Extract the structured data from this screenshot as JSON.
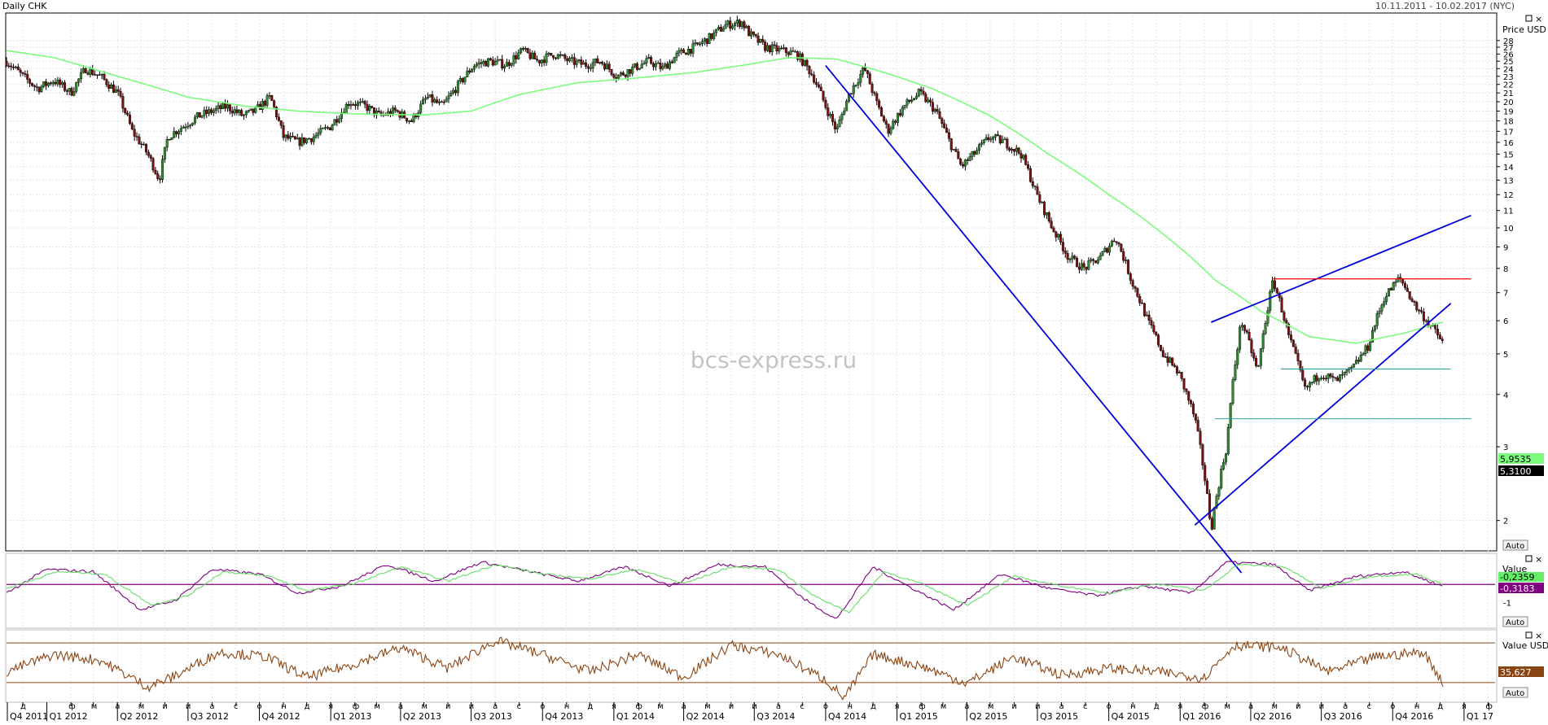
{
  "header": {
    "title": "Daily CHK",
    "date_range": "10.11.2011 - 10.02.2017 (NYC)"
  },
  "watermark": "bcs-express.ru",
  "colors": {
    "candle_up": "#2e8b2e",
    "candle_down": "#7a1010",
    "moving_average": "#7cfc7c",
    "trend_lines": "#0000dd",
    "resistance_line": "#ff0000",
    "support_line_upper": "#2aa0a0",
    "support_line_lower": "#2aa0a0",
    "oscillator_line": "#800080",
    "signal_line": "#66dd66",
    "rsi_line": "#8b4513",
    "grid": "#e4e4e4"
  },
  "chart_data": [
    {
      "type": "line",
      "panel": "price",
      "title": "Daily CHK",
      "ylabel": "Price USD",
      "y_scale": "log",
      "ylim": [
        1.7,
        32
      ],
      "y_ticks": [
        2,
        3,
        4,
        5,
        6,
        7,
        8,
        9,
        10,
        11,
        12,
        13,
        14,
        15,
        16,
        17,
        18,
        19,
        20,
        21,
        22,
        23,
        24,
        25,
        26,
        27,
        28
      ],
      "grid": true,
      "series": [
        {
          "role": "price (candlesticks)",
          "x": [
            "2011-11-10",
            "2011-12-01",
            "2011-12-20",
            "2012-01-10",
            "2012-02-01",
            "2012-02-20",
            "2012-03-10",
            "2012-04-01",
            "2012-04-20",
            "2012-05-10",
            "2012-05-25",
            "2012-06-05",
            "2012-06-25",
            "2012-07-15",
            "2012-08-01",
            "2012-08-20",
            "2012-09-10",
            "2012-09-25",
            "2012-10-15",
            "2012-11-01",
            "2012-11-20",
            "2012-12-10",
            "2013-01-01",
            "2013-01-25",
            "2013-02-15",
            "2013-03-05",
            "2013-03-25",
            "2013-04-15",
            "2013-05-05",
            "2013-05-25",
            "2013-06-15",
            "2013-07-05",
            "2013-07-25",
            "2013-08-15",
            "2013-09-05",
            "2013-09-25",
            "2013-10-15",
            "2013-11-05",
            "2013-11-25",
            "2013-12-15",
            "2014-01-05",
            "2014-01-25",
            "2014-02-15",
            "2014-03-05",
            "2014-03-25",
            "2014-04-15",
            "2014-05-05",
            "2014-05-25",
            "2014-06-15",
            "2014-06-25",
            "2014-07-15",
            "2014-08-05",
            "2014-08-25",
            "2014-09-15",
            "2014-10-01",
            "2014-10-15",
            "2014-11-01",
            "2014-11-20",
            "2014-12-05",
            "2014-12-20",
            "2015-01-10",
            "2015-01-30",
            "2015-02-20",
            "2015-03-10",
            "2015-03-25",
            "2015-04-10",
            "2015-05-01",
            "2015-05-20",
            "2015-06-10",
            "2015-06-30",
            "2015-07-20",
            "2015-08-10",
            "2015-08-30",
            "2015-09-20",
            "2015-10-10",
            "2015-10-30",
            "2015-11-20",
            "2015-12-10",
            "2015-12-30",
            "2016-01-20",
            "2016-02-10",
            "2016-03-01",
            "2016-03-20",
            "2016-04-10",
            "2016-04-30",
            "2016-05-20",
            "2016-06-10",
            "2016-06-30",
            "2016-07-20",
            "2016-08-10",
            "2016-08-30",
            "2016-09-20",
            "2016-10-10",
            "2016-10-30",
            "2016-11-20",
            "2016-12-05"
          ],
          "values": [
            25,
            23,
            21.5,
            22.5,
            21,
            24,
            23,
            21,
            17,
            15,
            13,
            16.5,
            17.5,
            18.5,
            19,
            19.5,
            18.5,
            19,
            20.5,
            16.5,
            16,
            16.5,
            17.5,
            20,
            19.5,
            18.5,
            19,
            18,
            20.5,
            19.5,
            22,
            24.5,
            25,
            24.5,
            26.5,
            25,
            26,
            25,
            24.5,
            25,
            23,
            24,
            25,
            24,
            26,
            27,
            28.5,
            30.5,
            31,
            29,
            27,
            26.5,
            26,
            23,
            19.5,
            17,
            21,
            24,
            20,
            17,
            19.5,
            21,
            19,
            16,
            14,
            15,
            16.5,
            16,
            15,
            12,
            10,
            8.5,
            8,
            8.5,
            9.5,
            7.5,
            6,
            5,
            4.5,
            3.5,
            1.9,
            3,
            6,
            4.5,
            7.5,
            5.5,
            4.1,
            4.5,
            4.3,
            4.6,
            5.2,
            6.8,
            7.6,
            6.5,
            5.8,
            5.31
          ]
        },
        {
          "role": "moving average",
          "label": "5,9535",
          "x": [
            "2011-11-10",
            "2012-01-10",
            "2012-04-01",
            "2012-07-01",
            "2012-09-15",
            "2012-11-20",
            "2013-02-01",
            "2013-05-01",
            "2013-07-01",
            "2013-09-01",
            "2013-11-15",
            "2014-02-01",
            "2014-04-15",
            "2014-06-20",
            "2014-08-15",
            "2014-10-15",
            "2014-12-15",
            "2015-02-15",
            "2015-05-01",
            "2015-07-15",
            "2015-10-01",
            "2015-12-15",
            "2016-02-15",
            "2016-04-15",
            "2016-06-15",
            "2016-08-15",
            "2016-10-15",
            "2016-12-05"
          ],
          "values": [
            26.5,
            25.5,
            23,
            20.5,
            19.5,
            19,
            18.7,
            18.6,
            19,
            20.8,
            22.2,
            22.8,
            23.5,
            24.5,
            25.5,
            25.3,
            23.5,
            21.5,
            18.5,
            15,
            12,
            9.5,
            7.5,
            6.3,
            5.5,
            5.3,
            5.6,
            5.9535
          ]
        },
        {
          "role": "downtrend line",
          "x": [
            "2014-10-01",
            "2016-03-20"
          ],
          "values": [
            24.4,
            1.5
          ]
        },
        {
          "role": "channel lower line",
          "x": [
            "2016-01-20",
            "2016-12-15"
          ],
          "values": [
            1.95,
            6.6
          ]
        },
        {
          "role": "channel upper line",
          "x": [
            "2016-02-10",
            "2017-01-10"
          ],
          "values": [
            5.95,
            10.7
          ]
        },
        {
          "role": "resistance level",
          "x": [
            "2016-04-30",
            "2017-01-10"
          ],
          "values": [
            7.55,
            7.55
          ]
        },
        {
          "role": "support level",
          "x": [
            "2016-05-10",
            "2016-12-15"
          ],
          "values": [
            4.6,
            4.6
          ]
        },
        {
          "role": "support level",
          "x": [
            "2016-02-15",
            "2017-01-10"
          ],
          "values": [
            3.5,
            3.5
          ]
        }
      ],
      "last_price_label": "5,3100",
      "scale_button": "Auto"
    },
    {
      "type": "line",
      "panel": "oscillator",
      "ylabel": "Value",
      "ylim": [
        -2,
        1
      ],
      "y_ticks": [
        -1
      ],
      "level": -0.2359,
      "level_label": "-0,2359",
      "last_value_label": "-0,3183",
      "series": [
        {
          "role": "oscillator",
          "x": [
            "2011-11-10",
            "2012-01-01",
            "2012-03-01",
            "2012-05-01",
            "2012-06-15",
            "2012-08-01",
            "2012-10-01",
            "2012-11-20",
            "2013-01-15",
            "2013-03-15",
            "2013-05-15",
            "2013-07-15",
            "2013-09-15",
            "2013-11-15",
            "2014-01-15",
            "2014-03-15",
            "2014-05-15",
            "2014-07-15",
            "2014-09-01",
            "2014-10-15",
            "2014-12-01",
            "2015-01-15",
            "2015-03-15",
            "2015-05-15",
            "2015-07-15",
            "2015-09-15",
            "2015-11-15",
            "2016-01-15",
            "2016-03-01",
            "2016-05-01",
            "2016-06-15",
            "2016-08-15",
            "2016-10-15",
            "2016-12-05"
          ],
          "values": [
            -0.6,
            0.4,
            0.3,
            -1.3,
            -0.9,
            0.4,
            0.2,
            -0.6,
            -0.3,
            0.6,
            -0.1,
            0.7,
            0.3,
            -0.1,
            0.5,
            -0.3,
            0.6,
            0.5,
            -0.8,
            -1.7,
            0.5,
            -0.3,
            -1.3,
            0.2,
            -0.4,
            -0.7,
            -0.3,
            -0.6,
            0.7,
            0.6,
            -0.5,
            0.1,
            0.3,
            -0.3183
          ]
        },
        {
          "role": "signal",
          "x": [
            "2011-11-10",
            "2012-01-15",
            "2012-03-15",
            "2012-05-15",
            "2012-07-01",
            "2012-08-15",
            "2012-10-15",
            "2012-12-01",
            "2013-02-01",
            "2013-04-01",
            "2013-06-01",
            "2013-08-01",
            "2013-10-01",
            "2013-12-01",
            "2014-02-01",
            "2014-04-01",
            "2014-06-01",
            "2014-08-01",
            "2014-09-15",
            "2014-11-01",
            "2014-12-15",
            "2015-02-01",
            "2015-04-01",
            "2015-06-01",
            "2015-08-01",
            "2015-10-01",
            "2015-12-01",
            "2016-02-01",
            "2016-03-15",
            "2016-05-15",
            "2016-07-01",
            "2016-09-01",
            "2016-11-01",
            "2016-12-05"
          ],
          "values": [
            -0.4,
            0.3,
            0.2,
            -1.1,
            -0.7,
            0.3,
            0.1,
            -0.5,
            -0.2,
            0.5,
            -0.1,
            0.6,
            0.2,
            0,
            0.4,
            -0.2,
            0.5,
            0.4,
            -0.7,
            -1.4,
            0.3,
            -0.2,
            -1.1,
            0.1,
            -0.3,
            -0.6,
            -0.2,
            -0.5,
            0.6,
            0.5,
            -0.4,
            0.1,
            0.2,
            -0.25
          ]
        }
      ],
      "scale_button": "Auto"
    },
    {
      "type": "line",
      "panel": "rsi",
      "ylabel": "Value USD",
      "ylim": [
        20,
        80
      ],
      "upper_level": 70,
      "lower_level": 35.627,
      "last_value_label": "35,627",
      "series": [
        {
          "role": "rsi",
          "x": [
            "2011-11-10",
            "2012-01-10",
            "2012-03-10",
            "2012-05-10",
            "2012-06-10",
            "2012-08-10",
            "2012-10-10",
            "2012-12-01",
            "2013-02-01",
            "2013-04-01",
            "2013-06-01",
            "2013-08-01",
            "2013-10-01",
            "2013-12-01",
            "2014-02-01",
            "2014-04-01",
            "2014-06-01",
            "2014-08-01",
            "2014-10-01",
            "2014-10-25",
            "2014-12-01",
            "2015-02-01",
            "2015-04-01",
            "2015-06-01",
            "2015-08-01",
            "2015-10-01",
            "2015-12-01",
            "2016-02-01",
            "2016-03-10",
            "2016-05-10",
            "2016-07-10",
            "2016-09-10",
            "2016-11-10",
            "2016-12-05"
          ],
          "values": [
            45,
            60,
            55,
            32,
            40,
            62,
            58,
            40,
            52,
            66,
            48,
            72,
            60,
            45,
            60,
            40,
            68,
            60,
            38,
            22,
            60,
            50,
            35,
            58,
            42,
            48,
            45,
            40,
            68,
            66,
            45,
            58,
            62,
            35.627
          ]
        }
      ],
      "scale_button": "Auto"
    }
  ],
  "x_axis": {
    "month_ticks": [
      {
        "date": "2011-12-01",
        "label": "д"
      },
      {
        "date": "2012-02-01",
        "label": "ф"
      },
      {
        "date": "2012-03-01",
        "label": "м"
      },
      {
        "date": "2012-04-01",
        "label": "а"
      },
      {
        "date": "2012-05-01",
        "label": "м"
      },
      {
        "date": "2012-06-01",
        "label": "и"
      },
      {
        "date": "2012-07-01",
        "label": "и"
      },
      {
        "date": "2012-08-01",
        "label": "а"
      },
      {
        "date": "2012-09-01",
        "label": "с"
      },
      {
        "date": "2012-10-01",
        "label": "о"
      },
      {
        "date": "2012-11-01",
        "label": "н"
      },
      {
        "date": "2012-12-01",
        "label": "д"
      },
      {
        "date": "2013-01-01",
        "label": "я"
      },
      {
        "date": "2013-02-01",
        "label": "ф"
      },
      {
        "date": "2013-03-01",
        "label": "м"
      },
      {
        "date": "2013-04-01",
        "label": "а"
      },
      {
        "date": "2013-05-01",
        "label": "м"
      },
      {
        "date": "2013-06-01",
        "label": "и"
      },
      {
        "date": "2013-07-01",
        "label": "и"
      },
      {
        "date": "2013-08-01",
        "label": "а"
      },
      {
        "date": "2013-09-01",
        "label": "с"
      },
      {
        "date": "2013-10-01",
        "label": "о"
      },
      {
        "date": "2013-11-01",
        "label": "н"
      },
      {
        "date": "2013-12-01",
        "label": "д"
      },
      {
        "date": "2014-01-01",
        "label": "я"
      },
      {
        "date": "2014-02-01",
        "label": "ф"
      },
      {
        "date": "2014-03-01",
        "label": "м"
      },
      {
        "date": "2014-04-01",
        "label": "а"
      },
      {
        "date": "2014-05-01",
        "label": "м"
      },
      {
        "date": "2014-06-01",
        "label": "и"
      },
      {
        "date": "2014-07-01",
        "label": "и"
      },
      {
        "date": "2014-08-01",
        "label": "а"
      },
      {
        "date": "2014-09-01",
        "label": "с"
      },
      {
        "date": "2014-10-01",
        "label": "о"
      },
      {
        "date": "2014-11-01",
        "label": "н"
      },
      {
        "date": "2014-12-01",
        "label": "д"
      },
      {
        "date": "2015-01-01",
        "label": "я"
      },
      {
        "date": "2015-02-01",
        "label": "ф"
      },
      {
        "date": "2015-03-01",
        "label": "м"
      },
      {
        "date": "2015-04-01",
        "label": "а"
      },
      {
        "date": "2015-05-01",
        "label": "м"
      },
      {
        "date": "2015-06-01",
        "label": "и"
      },
      {
        "date": "2015-07-01",
        "label": "и"
      },
      {
        "date": "2015-08-01",
        "label": "а"
      },
      {
        "date": "2015-09-01",
        "label": "с"
      },
      {
        "date": "2015-10-01",
        "label": "о"
      },
      {
        "date": "2015-11-01",
        "label": "н"
      },
      {
        "date": "2015-12-01",
        "label": "д"
      },
      {
        "date": "2016-01-01",
        "label": "я"
      },
      {
        "date": "2016-02-01",
        "label": "ф"
      },
      {
        "date": "2016-03-01",
        "label": "м"
      },
      {
        "date": "2016-04-01",
        "label": "а"
      },
      {
        "date": "2016-05-01",
        "label": "м"
      },
      {
        "date": "2016-06-01",
        "label": "и"
      },
      {
        "date": "2016-07-01",
        "label": "и"
      },
      {
        "date": "2016-08-01",
        "label": "а"
      },
      {
        "date": "2016-09-01",
        "label": "с"
      },
      {
        "date": "2016-10-01",
        "label": "о"
      },
      {
        "date": "2016-11-01",
        "label": "н"
      },
      {
        "date": "2016-12-01",
        "label": "д"
      },
      {
        "date": "2017-01-01",
        "label": "я"
      },
      {
        "date": "2017-02-01",
        "label": "ф"
      }
    ],
    "quarter_labels": [
      {
        "date": "2011-11-01",
        "label": "Q4 2011"
      },
      {
        "date": "2012-01-01",
        "label": "Q1 2012"
      },
      {
        "date": "2012-04-01",
        "label": "Q2 2012"
      },
      {
        "date": "2012-07-01",
        "label": "Q3 2012"
      },
      {
        "date": "2012-10-01",
        "label": "Q4 2012"
      },
      {
        "date": "2013-01-01",
        "label": "Q1 2013"
      },
      {
        "date": "2013-04-01",
        "label": "Q2 2013"
      },
      {
        "date": "2013-07-01",
        "label": "Q3 2013"
      },
      {
        "date": "2013-10-01",
        "label": "Q4 2013"
      },
      {
        "date": "2014-01-01",
        "label": "Q1 2014"
      },
      {
        "date": "2014-04-01",
        "label": "Q2 2014"
      },
      {
        "date": "2014-07-01",
        "label": "Q3 2014"
      },
      {
        "date": "2014-10-01",
        "label": "Q4 2014"
      },
      {
        "date": "2015-01-01",
        "label": "Q1 2015"
      },
      {
        "date": "2015-04-01",
        "label": "Q2 2015"
      },
      {
        "date": "2015-07-01",
        "label": "Q3 2015"
      },
      {
        "date": "2015-10-01",
        "label": "Q4 2015"
      },
      {
        "date": "2016-01-01",
        "label": "Q1 2016"
      },
      {
        "date": "2016-04-01",
        "label": "Q2 2016"
      },
      {
        "date": "2016-07-01",
        "label": "Q3 2016"
      },
      {
        "date": "2016-10-01",
        "label": "Q4 2016"
      },
      {
        "date": "2017-01-01",
        "label": "Q1 17"
      }
    ]
  }
}
